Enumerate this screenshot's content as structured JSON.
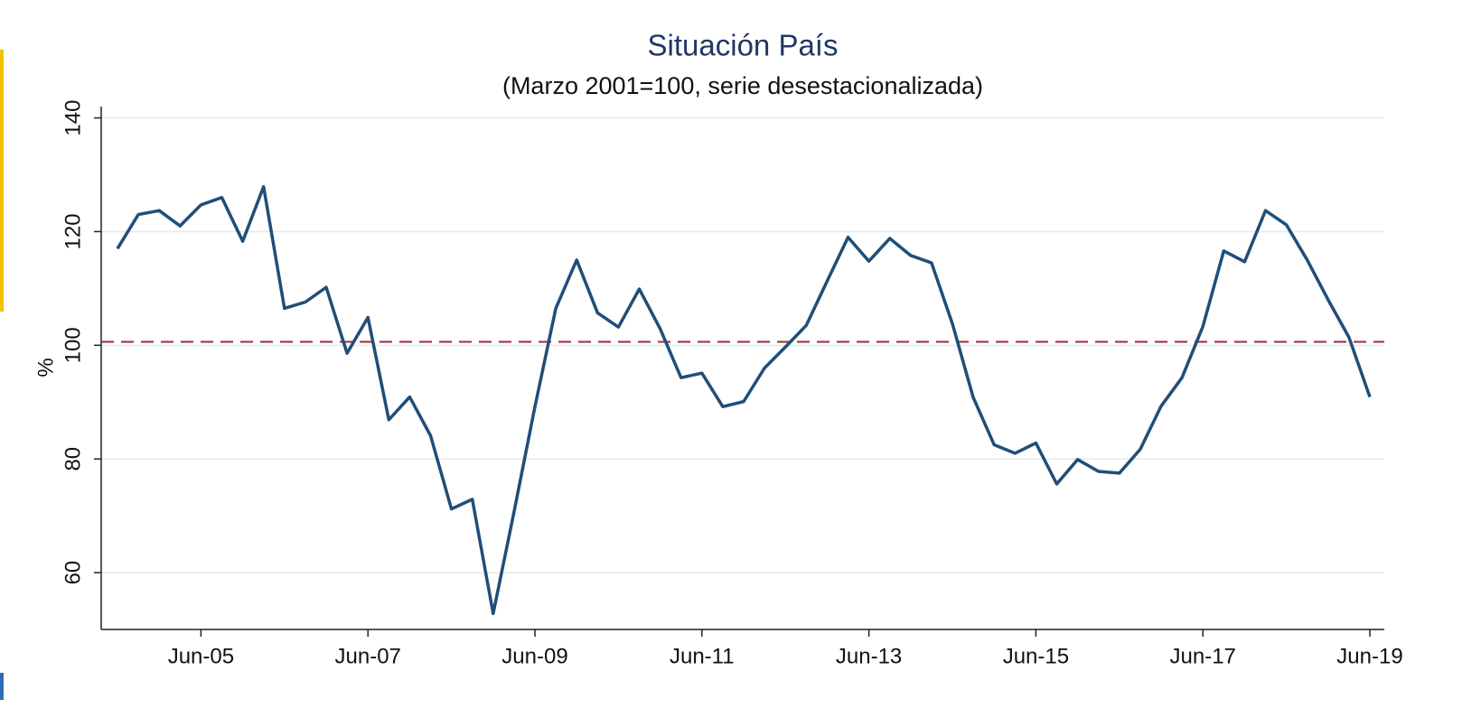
{
  "chart_data": {
    "type": "line",
    "title": "Situación País",
    "subtitle": "(Marzo 2001=100, serie desestacionalizada)",
    "y_label": "%",
    "categories": [
      null,
      null,
      null,
      null,
      "Jun-05",
      null,
      null,
      null,
      null,
      null,
      null,
      null,
      "Jun-07",
      null,
      null,
      null,
      null,
      null,
      null,
      null,
      "Jun-09",
      null,
      null,
      null,
      null,
      null,
      null,
      null,
      "Jun-11",
      null,
      null,
      null,
      null,
      null,
      null,
      null,
      "Jun-13",
      null,
      null,
      null,
      null,
      null,
      null,
      null,
      "Jun-15",
      null,
      null,
      null,
      null,
      null,
      null,
      null,
      "Jun-17",
      null,
      null,
      null,
      null,
      null,
      null,
      null,
      "Jun-19"
    ],
    "series": [
      {
        "color": "#1f4e79",
        "values": [
          117.0,
          123.0,
          123.7,
          121.0,
          124.7,
          126.0,
          118.3,
          127.9,
          106.5,
          107.6,
          110.2,
          98.6,
          104.9,
          86.9,
          90.9,
          84.1,
          71.2,
          72.9,
          52.8,
          70.7,
          89.2,
          106.5,
          115.0,
          105.7,
          103.2,
          109.9,
          102.9,
          94.3,
          95.1,
          89.2,
          90.1,
          96.0,
          99.7,
          103.5,
          111.3,
          119.0,
          114.8,
          118.8,
          115.8,
          114.5,
          103.8,
          90.8,
          82.5,
          81.0,
          82.8,
          75.6,
          79.9,
          77.8,
          77.5,
          81.7,
          89.3,
          94.3,
          103.3,
          116.6,
          114.7,
          123.7,
          121.2,
          115.0,
          108.0,
          101.4,
          90.9
        ]
      }
    ],
    "reference_line": {
      "value": 100.6,
      "color": "#9b2d30",
      "style": "dashed"
    },
    "ylim": [
      50,
      142
    ],
    "yticks": [
      60,
      80,
      100,
      120,
      140
    ],
    "grid": true
  }
}
